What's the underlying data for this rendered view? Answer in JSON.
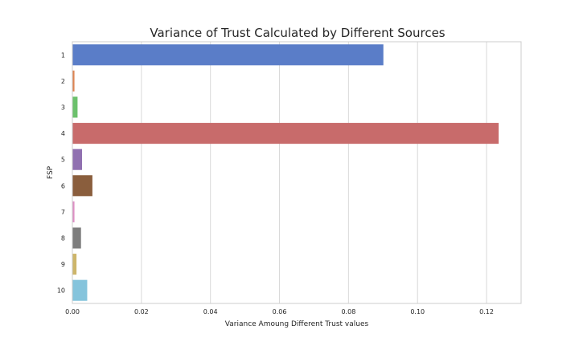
{
  "chart_data": {
    "type": "bar",
    "orientation": "horizontal",
    "title": "Variance of Trust Calculated by Different Sources",
    "xlabel": "Variance Amoung Different Trust values",
    "ylabel": "FSP",
    "categories": [
      "1",
      "2",
      "3",
      "4",
      "5",
      "6",
      "7",
      "8",
      "9",
      "10"
    ],
    "values": [
      0.0901,
      0.0006,
      0.0015,
      0.1235,
      0.0028,
      0.0058,
      0.0006,
      0.0025,
      0.0012,
      0.0043
    ],
    "colors": [
      "#5a7dc8",
      "#dd8452",
      "#6cc16c",
      "#c86b6b",
      "#9070b0",
      "#8a5e3d",
      "#dd8fc4",
      "#7d7d7d",
      "#cdb56a",
      "#85c4dc"
    ],
    "xlim": [
      0,
      0.13
    ],
    "xticks": [
      0.0,
      0.02,
      0.04,
      0.06,
      0.08,
      0.1,
      0.12
    ],
    "xtick_labels": [
      "0.00",
      "0.02",
      "0.04",
      "0.06",
      "0.08",
      "0.10",
      "0.12"
    ],
    "grid": "vertical",
    "legend": "none"
  }
}
